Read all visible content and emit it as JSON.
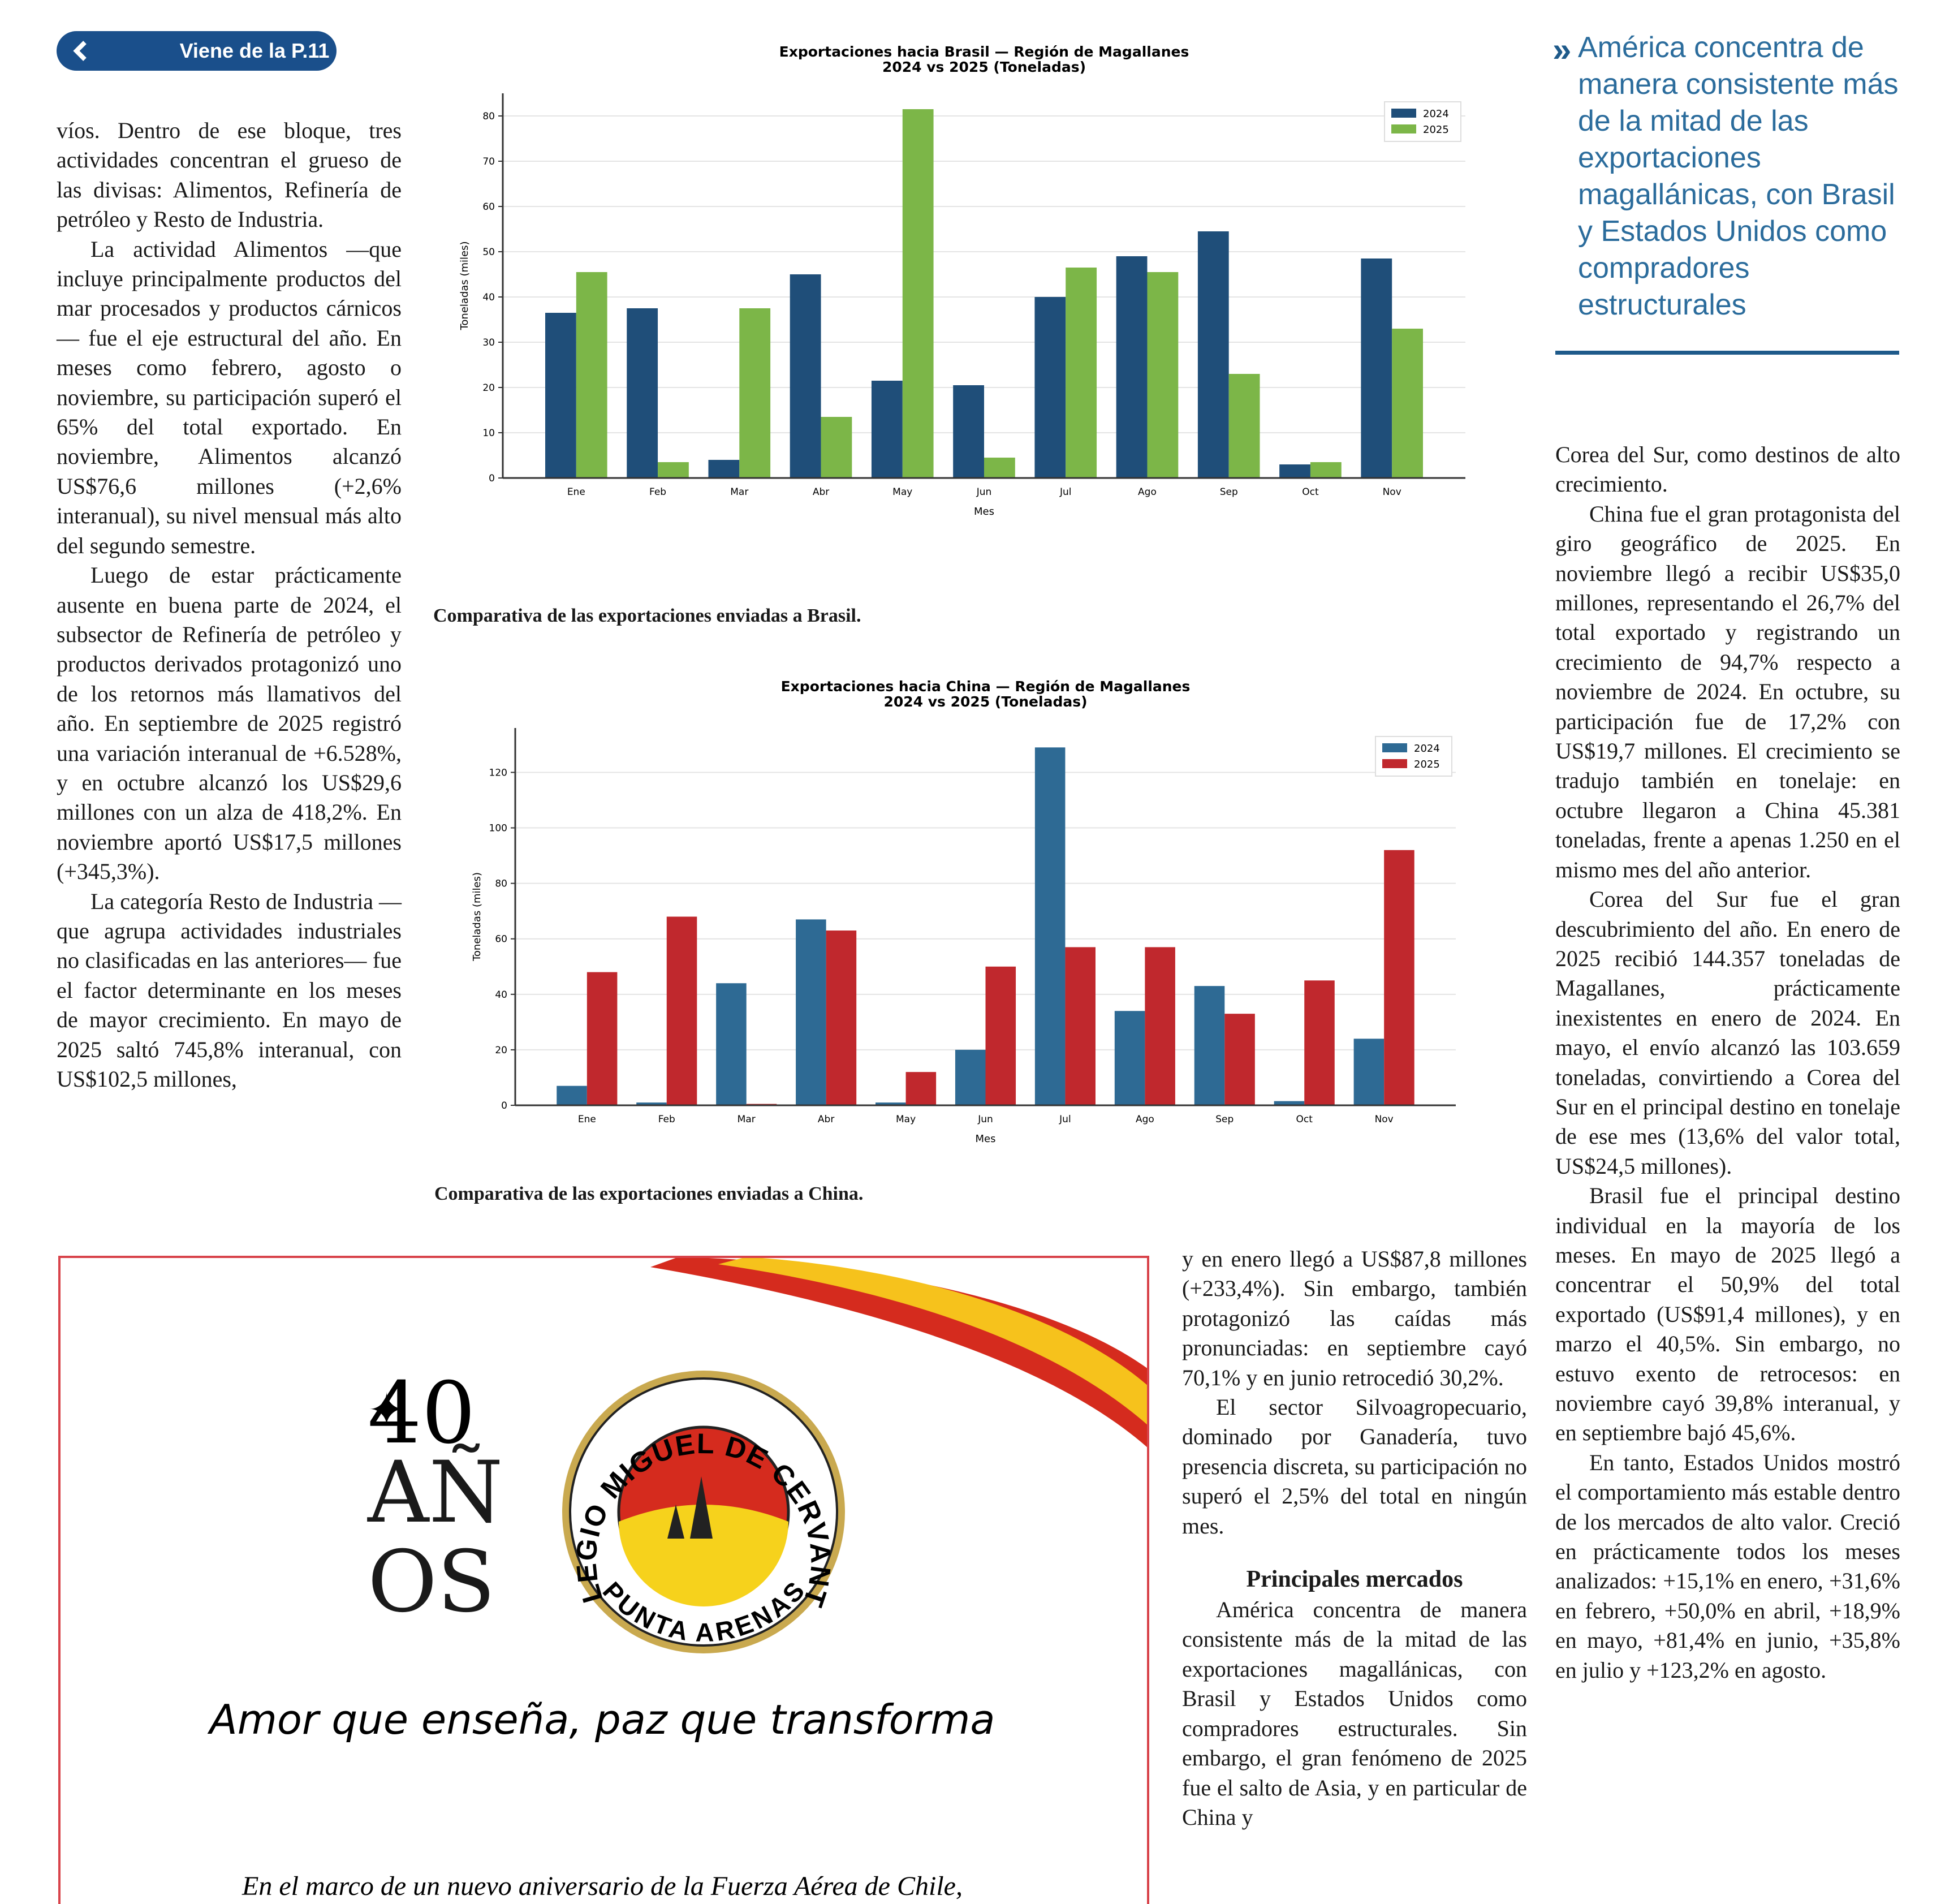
{
  "nav": {
    "label": "Viene de la P.11"
  },
  "columns": {
    "left": {
      "paragraphs": [
        "víos. Dentro de ese bloque, tres actividades concentran el grueso de las divisas: Alimentos, Refinería de petróleo y Resto de Industria.",
        "La actividad Alimentos —que incluye principalmente productos del mar procesados y productos cárnicos— fue el eje estructural del año. En meses como febrero, agosto o noviembre, su participación superó el 65% del total exportado. En noviembre, Alimentos alcanzó US$76,6 millones (+2,6% interanual), su nivel mensual más alto del segundo semestre.",
        "Luego de estar prácticamente ausente en buena parte de 2024, el subsector de Refinería de petróleo y productos derivados protagonizó uno de los retornos más llamativos del año. En septiembre de 2025 registró una variación interanual de +6.528%, y en octubre alcanzó los US$29,6 millones con un alza de 418,2%. En noviembre aportó US$17,5 millones (+345,3%).",
        "La categoría Resto de Industria —que agrupa actividades industriales no clasificadas en las anteriores— fue el factor determinante en los meses de mayor crecimiento. En mayo de 2025 saltó 745,8% interanual, con US$102,5 millones,"
      ]
    },
    "middle": {
      "paragraphs": [
        "y en enero llegó a US$87,8 millones (+233,4%). Sin embargo, también protagonizó las caídas más pronunciadas: en septiembre cayó 70,1% y en junio retrocedió 30,2%.",
        "El sector Silvoagropecuario, dominado por Ganadería, tuvo presencia discreta, su participación no superó el 2,5% del total en ningún mes."
      ],
      "heading": "Principales mercados",
      "paragraphs_after": [
        "América concentra de manera consistente más de la mitad de las exportaciones magallánicas, con Brasil y Estados Unidos como compradores estructurales. Sin embargo, el gran fenómeno de 2025 fue el salto de Asia, y en particular de China y"
      ]
    },
    "right": {
      "quote": "América concentra de manera consistente más de la mitad de las exportaciones magallánicas, con Brasil y Estados Unidos como compradores estructurales",
      "paragraphs": [
        "Corea del Sur, como destinos de alto crecimiento.",
        "China fue el gran protagonista del giro geográfico de 2025. En noviembre llegó a recibir US$35,0 millones, representando el 26,7% del total exportado y registrando un crecimiento de 94,7% respecto a noviembre de 2024. En octubre, su participación fue de 17,2% con US$19,7 millones. El crecimiento se tradujo también en tonelaje: en octubre llegaron a China 45.381 toneladas, frente a apenas 1.250 en el mismo mes del año anterior.",
        "Corea del Sur fue el gran descubrimiento del año. En enero de 2025 recibió 144.357 toneladas de Magallanes, prácticamente inexistentes en enero de 2024. En mayo, el envío alcanzó las 103.659 toneladas, convirtiendo a Corea del Sur en el principal destino en tonelaje de ese mes (13,6% del valor total, US$24,5 millones).",
        "Brasil fue el principal destino individual en la mayoría de los meses. En mayo de 2025 llegó a concentrar el 50,9% del total exportado (US$91,4 millones), y en marzo el 40,5%. Sin embargo, no estuvo exento de retrocesos: en noviembre cayó 39,8% interanual, y en septiembre bajó 45,6%.",
        "En tanto, Estados Unidos mostró el comportamiento más estable dentro de los mercados de alto valor. Creció en prácticamente todos los meses analizados: +15,1% en enero, +31,6% en febrero, +50,0% en abril, +18,9% en mayo, +81,4% en junio, +35,8% en julio y +123,2% en agosto."
      ]
    }
  },
  "chart_data": [
    {
      "type": "bar",
      "title": "Exportaciones hacia Brasil — Región de Magallanes",
      "subtitle": "2024 vs 2025 (Toneladas)",
      "x_label": "Mes",
      "y_label": "Toneladas (miles)",
      "caption": "Comparativa de las exportaciones enviadas a Brasil.",
      "categories": [
        "Ene",
        "Feb",
        "Mar",
        "Abr",
        "May",
        "Jun",
        "Jul",
        "Ago",
        "Sep",
        "Oct",
        "Nov"
      ],
      "series": [
        {
          "name": "2024",
          "color": "#1f4e79",
          "values": [
            36.5,
            37.5,
            4,
            45,
            21.5,
            20.5,
            40,
            49,
            54.5,
            3,
            48.5
          ]
        },
        {
          "name": "2025",
          "color": "#7cb648",
          "values": [
            45.5,
            3.5,
            37.5,
            13.5,
            81.5,
            4.5,
            46.5,
            45.5,
            23,
            3.5,
            33
          ]
        }
      ],
      "ylim": [
        0,
        85
      ],
      "yticks": [
        0,
        10,
        20,
        30,
        40,
        50,
        60,
        70,
        80
      ],
      "grid": true,
      "legend": "upper right"
    },
    {
      "type": "bar",
      "title": "Exportaciones hacia China — Región de Magallanes",
      "subtitle": "2024 vs 2025 (Toneladas)",
      "x_label": "Mes",
      "y_label": "Toneladas (miles)",
      "caption": "Comparativa de las exportaciones enviadas a China.",
      "categories": [
        "Ene",
        "Feb",
        "Mar",
        "Abr",
        "May",
        "Jun",
        "Jul",
        "Ago",
        "Sep",
        "Oct",
        "Nov"
      ],
      "series": [
        {
          "name": "2024",
          "color": "#2e6a94",
          "values": [
            7,
            1,
            44,
            67,
            1,
            20,
            129,
            34,
            43,
            1.5,
            24
          ]
        },
        {
          "name": "2025",
          "color": "#c0282d",
          "values": [
            48,
            68,
            0.5,
            63,
            12,
            50,
            57,
            57,
            33,
            45,
            92
          ]
        }
      ],
      "ylim": [
        0,
        136
      ],
      "yticks": [
        0,
        20,
        40,
        60,
        80,
        100,
        120
      ],
      "grid": true,
      "legend": "upper right"
    }
  ],
  "ad": {
    "number": "40",
    "word": "AÑOS",
    "ring_top": "COLEGIO MIGUEL DE CERVANTES",
    "ring_bottom": "PUNTA ARENAS",
    "slogan": "Amor que enseña, paz que transforma",
    "text": "En el marco de un nuevo aniversario de la Fuerza Aérea de Chile,"
  }
}
